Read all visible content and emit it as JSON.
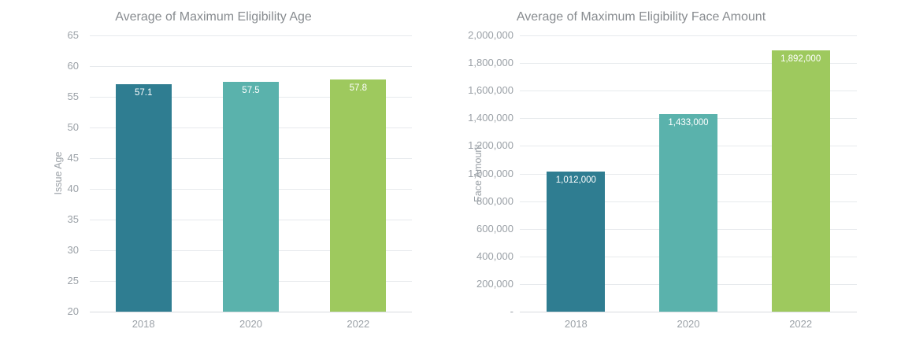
{
  "chart_data": [
    {
      "type": "bar",
      "title": "Average of Maximum Eligibility Age",
      "categories": [
        "2018",
        "2020",
        "2022"
      ],
      "values": [
        57.1,
        57.5,
        57.8
      ],
      "bar_labels": [
        "57.1",
        "57.5",
        "57.8"
      ],
      "bar_colors": [
        "#2F7D91",
        "#5AB2AC",
        "#9EC95E"
      ],
      "xlabel": "",
      "ylabel": "Issue Age",
      "ylim": [
        20,
        65
      ],
      "ytick_step": 5,
      "ytick_labels": [
        "65",
        "60",
        "55",
        "50",
        "45",
        "40",
        "35",
        "30",
        "25",
        "20"
      ],
      "grid": true,
      "legend_position": "none"
    },
    {
      "type": "bar",
      "title": "Average of Maximum Eligibility Face Amount",
      "categories": [
        "2018",
        "2020",
        "2022"
      ],
      "values": [
        1012000,
        1433000,
        1892000
      ],
      "bar_labels": [
        "1,012,000",
        "1,433,000",
        "1,892,000"
      ],
      "bar_colors": [
        "#2F7D91",
        "#5AB2AC",
        "#9EC95E"
      ],
      "xlabel": "",
      "ylabel": "Face Amount",
      "ylim": [
        0,
        2000000
      ],
      "ytick_step": 200000,
      "ytick_labels": [
        "2,000,000",
        "1,800,000",
        "1,600,000",
        "1,400,000",
        "1,200,000",
        "1,000,000",
        "800,000",
        "600,000",
        "400,000",
        "200,000",
        "-"
      ],
      "grid": true,
      "legend_position": "none"
    }
  ],
  "style": {
    "background": "#ffffff",
    "grid_color": "#e7eaed",
    "baseline_color": "#d8dcdf",
    "title_color": "#888c90",
    "tick_color": "#9ba1a7",
    "bar_value_label_color": "#ffffff"
  }
}
